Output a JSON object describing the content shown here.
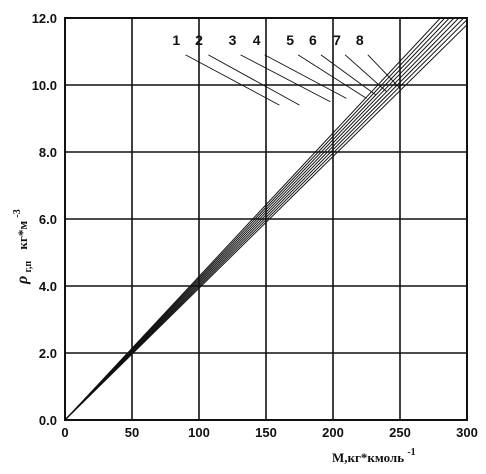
{
  "chart_data": {
    "type": "line",
    "xlabel_main": "M,кг*кмоль",
    "xlabel_sup": "-1",
    "ylabel_main": "ρ",
    "ylabel_sub": "г,п",
    "ylabel_unit": "кг*м",
    "ylabel_sup": "-3",
    "xlim": [
      0,
      300
    ],
    "ylim": [
      0,
      12
    ],
    "x_ticks": [
      0,
      50,
      100,
      150,
      200,
      250,
      300
    ],
    "x_tick_labels": [
      "0",
      "50",
      "100",
      "150",
      "200",
      "250",
      "300"
    ],
    "y_ticks": [
      0,
      2,
      4,
      6,
      8,
      10,
      12
    ],
    "y_tick_labels": [
      "0.0",
      "2.0",
      "4.0",
      "6.0",
      "8.0",
      "10.0",
      "12.0"
    ],
    "grid": true,
    "series": [
      {
        "name": "1",
        "x": [
          0,
          300
        ],
        "y": [
          0,
          11.8
        ],
        "label_x": 83,
        "label_y": 11.2
      },
      {
        "name": "2",
        "x": [
          0,
          300
        ],
        "y": [
          0,
          11.95
        ],
        "label_x": 100,
        "label_y": 11.2
      },
      {
        "name": "3",
        "x": [
          0,
          300
        ],
        "y": [
          0,
          12.1
        ],
        "label_x": 125,
        "label_y": 11.2
      },
      {
        "name": "4",
        "x": [
          0,
          300
        ],
        "y": [
          0,
          12.25
        ],
        "label_x": 143,
        "label_y": 11.2
      },
      {
        "name": "5",
        "x": [
          0,
          300
        ],
        "y": [
          0,
          12.4
        ],
        "label_x": 168,
        "label_y": 11.2
      },
      {
        "name": "6",
        "x": [
          0,
          300
        ],
        "y": [
          0,
          12.55
        ],
        "label_x": 185,
        "label_y": 11.2
      },
      {
        "name": "7",
        "x": [
          0,
          300
        ],
        "y": [
          0,
          12.7
        ],
        "label_x": 203,
        "label_y": 11.2
      },
      {
        "name": "8",
        "x": [
          0,
          300
        ],
        "y": [
          0,
          12.85
        ],
        "label_x": 220,
        "label_y": 11.2
      }
    ],
    "leaders": [
      {
        "from": [
          90,
          10.9
        ],
        "to": [
          160,
          9.4
        ]
      },
      {
        "from": [
          107,
          10.9
        ],
        "to": [
          175,
          9.4
        ]
      },
      {
        "from": [
          131,
          10.9
        ],
        "to": [
          198,
          9.5
        ]
      },
      {
        "from": [
          149,
          10.9
        ],
        "to": [
          210,
          9.6
        ]
      },
      {
        "from": [
          174,
          10.9
        ],
        "to": [
          225,
          9.6
        ]
      },
      {
        "from": [
          191,
          10.9
        ],
        "to": [
          232,
          9.7
        ]
      },
      {
        "from": [
          209,
          10.9
        ],
        "to": [
          240,
          9.8
        ]
      },
      {
        "from": [
          226,
          10.9
        ],
        "to": [
          250,
          9.9
        ]
      }
    ]
  }
}
